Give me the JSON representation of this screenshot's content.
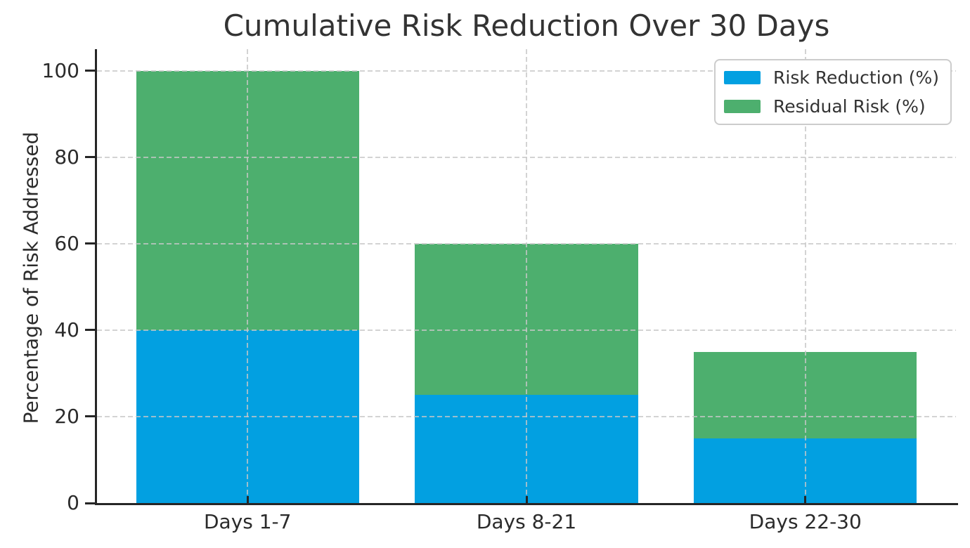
{
  "chart_data": {
    "type": "bar",
    "stacked": true,
    "title": "Cumulative Risk Reduction Over 30 Days",
    "xlabel": "",
    "ylabel": "Percentage of Risk Addressed",
    "categories": [
      "Days 1-7",
      "Days 8-21",
      "Days 22-30"
    ],
    "series": [
      {
        "name": "Risk Reduction (%)",
        "color": "#02a0e1",
        "values": [
          40,
          25,
          15
        ]
      },
      {
        "name": "Residual Risk (%)",
        "color": "#4daf6e",
        "values": [
          60,
          35,
          20
        ]
      }
    ],
    "stack_totals": [
      100,
      60,
      35
    ],
    "ylim": [
      0,
      105
    ],
    "yticks": [
      0,
      20,
      40,
      60,
      80,
      100
    ],
    "grid": true,
    "grid_style": "dashed",
    "grid_color": "#c7c7c7",
    "spine_color": "#262626",
    "text_color": "#2b2b2b",
    "legend_position": "upper right"
  }
}
